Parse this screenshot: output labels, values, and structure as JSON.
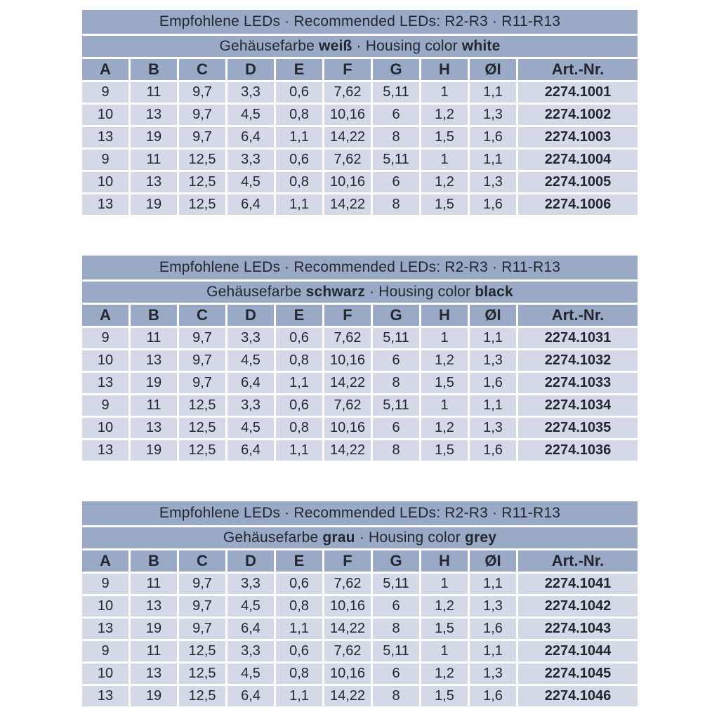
{
  "colors": {
    "band_bg": "#9aa9c5",
    "row_bg": "#d3d9e6",
    "text": "#23272f",
    "page_bg": "#ffffff"
  },
  "tables": [
    {
      "title": "Empfohlene LEDs · Recommended LEDs: R2-R3 · R11-R13",
      "subtitle": {
        "prefix": "Gehäusefarbe ",
        "color_de": "weiß",
        "mid": " · Housing color ",
        "color_en": "white"
      },
      "columns": [
        "A",
        "B",
        "C",
        "D",
        "E",
        "F",
        "G",
        "H",
        "ØI",
        "Art.-Nr."
      ],
      "rows": [
        [
          "9",
          "11",
          "9,7",
          "3,3",
          "0,6",
          "7,62",
          "5,11",
          "1",
          "1,1",
          "2274.1001"
        ],
        [
          "10",
          "13",
          "9,7",
          "4,5",
          "0,8",
          "10,16",
          "6",
          "1,2",
          "1,3",
          "2274.1002"
        ],
        [
          "13",
          "19",
          "9,7",
          "6,4",
          "1,1",
          "14,22",
          "8",
          "1,5",
          "1,6",
          "2274.1003"
        ],
        [
          "9",
          "11",
          "12,5",
          "3,3",
          "0,6",
          "7,62",
          "5,11",
          "1",
          "1,1",
          "2274.1004"
        ],
        [
          "10",
          "13",
          "12,5",
          "4,5",
          "0,8",
          "10,16",
          "6",
          "1,2",
          "1,3",
          "2274.1005"
        ],
        [
          "13",
          "19",
          "12,5",
          "6,4",
          "1,1",
          "14,22",
          "8",
          "1,5",
          "1,6",
          "2274.1006"
        ]
      ]
    },
    {
      "title": "Empfohlene LEDs · Recommended LEDs: R2-R3 · R11-R13",
      "subtitle": {
        "prefix": "Gehäusefarbe ",
        "color_de": "schwarz",
        "mid": " · Housing color ",
        "color_en": "black"
      },
      "columns": [
        "A",
        "B",
        "C",
        "D",
        "E",
        "F",
        "G",
        "H",
        "ØI",
        "Art.-Nr."
      ],
      "rows": [
        [
          "9",
          "11",
          "9,7",
          "3,3",
          "0,6",
          "7,62",
          "5,11",
          "1",
          "1,1",
          "2274.1031"
        ],
        [
          "10",
          "13",
          "9,7",
          "4,5",
          "0,8",
          "10,16",
          "6",
          "1,2",
          "1,3",
          "2274.1032"
        ],
        [
          "13",
          "19",
          "9,7",
          "6,4",
          "1,1",
          "14,22",
          "8",
          "1,5",
          "1,6",
          "2274.1033"
        ],
        [
          "9",
          "11",
          "12,5",
          "3,3",
          "0,6",
          "7,62",
          "5,11",
          "1",
          "1,1",
          "2274.1034"
        ],
        [
          "10",
          "13",
          "12,5",
          "4,5",
          "0,8",
          "10,16",
          "6",
          "1,2",
          "1,3",
          "2274.1035"
        ],
        [
          "13",
          "19",
          "12,5",
          "6,4",
          "1,1",
          "14,22",
          "8",
          "1,5",
          "1,6",
          "2274.1036"
        ]
      ]
    },
    {
      "title": "Empfohlene LEDs · Recommended LEDs: R2-R3 · R11-R13",
      "subtitle": {
        "prefix": "Gehäusefarbe ",
        "color_de": "grau",
        "mid": " · Housing color ",
        "color_en": "grey"
      },
      "columns": [
        "A",
        "B",
        "C",
        "D",
        "E",
        "F",
        "G",
        "H",
        "ØI",
        "Art.-Nr."
      ],
      "rows": [
        [
          "9",
          "11",
          "9,7",
          "3,3",
          "0,6",
          "7,62",
          "5,11",
          "1",
          "1,1",
          "2274.1041"
        ],
        [
          "10",
          "13",
          "9,7",
          "4,5",
          "0,8",
          "10,16",
          "6",
          "1,2",
          "1,3",
          "2274.1042"
        ],
        [
          "13",
          "19",
          "9,7",
          "6,4",
          "1,1",
          "14,22",
          "8",
          "1,5",
          "1,6",
          "2274.1043"
        ],
        [
          "9",
          "11",
          "12,5",
          "3,3",
          "0,6",
          "7,62",
          "5,11",
          "1",
          "1,1",
          "2274.1044"
        ],
        [
          "10",
          "13",
          "12,5",
          "4,5",
          "0,8",
          "10,16",
          "6",
          "1,2",
          "1,3",
          "2274.1045"
        ],
        [
          "13",
          "19",
          "12,5",
          "6,4",
          "1,1",
          "14,22",
          "8",
          "1,5",
          "1,6",
          "2274.1046"
        ]
      ]
    }
  ]
}
